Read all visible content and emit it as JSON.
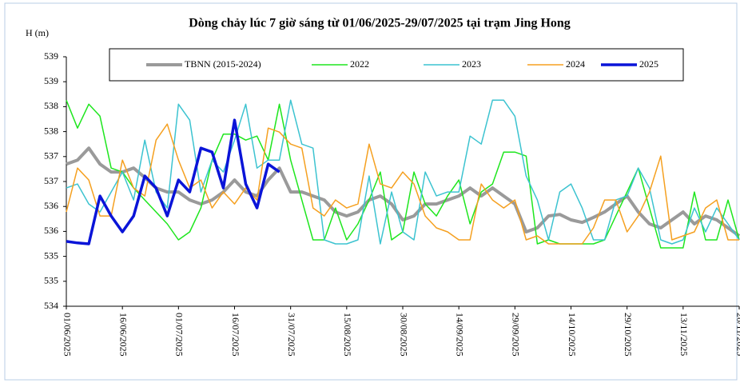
{
  "chart_data": {
    "type": "line",
    "title": "Dòng chảy lúc 7 giờ sáng từ 01/06/2025-29/07/2025 tại trạm Jing Hong",
    "y_label": "H (m)",
    "x": [
      "01/06/2025",
      null,
      null,
      null,
      null,
      "16/06/2025",
      null,
      null,
      null,
      null,
      "01/07/2025",
      null,
      null,
      null,
      null,
      "16/07/2025",
      null,
      null,
      null,
      null,
      "31/07/2025",
      null,
      null,
      null,
      null,
      "15/08/2025",
      null,
      null,
      null,
      null,
      "30/08/2025",
      null,
      null,
      null,
      null,
      "14/09/2025",
      null,
      null,
      null,
      null,
      "29/09/2025",
      null,
      null,
      null,
      null,
      "14/10/2025",
      null,
      null,
      null,
      null,
      "29/10/2025",
      null,
      null,
      null,
      null,
      "13/11/2025",
      null,
      null,
      null,
      null,
      "28/11/2025"
    ],
    "ylim": [
      534,
      539
    ],
    "yticks": [
      534,
      {
        "value": 534.5,
        "label": "535"
      },
      535,
      {
        "value": 535.5,
        "label": "536"
      },
      536,
      {
        "value": 536.5,
        "label": "537"
      },
      537,
      {
        "value": 537.5,
        "label": "538"
      },
      538,
      {
        "value": 538.5,
        "label": "539"
      },
      539
    ],
    "grid": false,
    "legend": "top",
    "series": [
      {
        "name": "TBNN (2015-2024)",
        "color": "#9a9a9a",
        "width": 4,
        "values": [
          536.85,
          536.93,
          537.17,
          536.85,
          536.69,
          536.69,
          536.77,
          536.58,
          536.37,
          536.29,
          536.29,
          536.13,
          536.05,
          536.13,
          536.29,
          536.53,
          536.29,
          536.21,
          536.53,
          536.77,
          536.29,
          536.29,
          536.21,
          536.13,
          535.89,
          535.81,
          535.89,
          536.13,
          536.21,
          536.05,
          535.73,
          535.81,
          536.05,
          536.05,
          536.13,
          536.21,
          536.37,
          536.21,
          536.37,
          536.21,
          536.05,
          535.49,
          535.57,
          535.81,
          535.84,
          535.73,
          535.68,
          535.78,
          535.89,
          536.05,
          536.21,
          535.89,
          535.65,
          535.57,
          535.73,
          535.89,
          535.65,
          535.81,
          535.73,
          535.57,
          535.41
        ]
      },
      {
        "name": "2022",
        "color": "#1ee61e",
        "width": 1.5,
        "values": [
          538.13,
          537.57,
          538.05,
          537.81,
          536.77,
          536.69,
          536.37,
          536.13,
          535.89,
          535.65,
          535.33,
          535.49,
          535.97,
          536.93,
          537.45,
          537.45,
          537.33,
          537.41,
          536.93,
          538.05,
          536.93,
          536.13,
          535.33,
          535.33,
          535.97,
          535.33,
          535.65,
          536.13,
          536.69,
          535.33,
          535.49,
          536.69,
          536.05,
          535.81,
          536.21,
          536.53,
          535.65,
          536.29,
          536.45,
          537.09,
          537.09,
          537.01,
          535.25,
          535.33,
          535.25,
          535.25,
          535.25,
          535.25,
          535.33,
          535.81,
          536.29,
          536.77,
          535.97,
          535.17,
          535.17,
          535.17,
          536.29,
          535.33,
          535.33,
          536.13,
          535.33
        ]
      },
      {
        "name": "2023",
        "color": "#3cc3d0",
        "width": 1.5,
        "values": [
          536.37,
          536.45,
          536.05,
          535.89,
          536.29,
          536.69,
          536.13,
          537.33,
          536.29,
          535.97,
          538.05,
          537.73,
          536.29,
          536.93,
          536.69,
          537.33,
          538.05,
          536.77,
          536.93,
          536.93,
          538.13,
          537.25,
          537.17,
          535.33,
          535.25,
          535.25,
          535.33,
          536.61,
          535.25,
          536.29,
          535.49,
          535.33,
          536.69,
          536.21,
          536.29,
          536.29,
          537.41,
          537.25,
          538.13,
          538.13,
          537.81,
          536.61,
          536.13,
          535.33,
          536.29,
          536.45,
          535.97,
          535.33,
          535.33,
          536.13,
          536.21,
          536.77,
          536.37,
          535.33,
          535.25,
          535.33,
          535.97,
          535.49,
          535.97,
          535.65,
          535.33
        ]
      },
      {
        "name": "2024",
        "color": "#f5a020",
        "width": 1.5,
        "values": [
          535.89,
          536.77,
          536.53,
          535.81,
          535.81,
          536.93,
          536.37,
          536.21,
          537.33,
          537.65,
          536.93,
          536.37,
          536.53,
          535.97,
          536.29,
          536.05,
          536.37,
          536.13,
          537.57,
          537.49,
          537.25,
          537.17,
          535.97,
          535.81,
          536.13,
          535.97,
          536.05,
          537.25,
          536.45,
          536.37,
          536.69,
          536.45,
          535.81,
          535.57,
          535.49,
          535.33,
          535.33,
          536.45,
          536.13,
          535.97,
          536.13,
          535.33,
          535.41,
          535.25,
          535.25,
          535.25,
          535.25,
          535.57,
          536.13,
          536.13,
          535.49,
          535.81,
          536.29,
          537.01,
          535.33,
          535.41,
          535.49,
          535.97,
          536.13,
          535.33,
          535.33
        ]
      },
      {
        "name": "2025",
        "color": "#0a14d8",
        "width": 3.5,
        "values": [
          535.3,
          535.27,
          535.25,
          536.21,
          535.81,
          535.49,
          535.81,
          536.61,
          536.37,
          535.81,
          536.53,
          536.29,
          537.17,
          537.09,
          536.37,
          537.73,
          536.45,
          535.97,
          536.85,
          536.69,
          null,
          null,
          null,
          null,
          null,
          null,
          null,
          null,
          null,
          null,
          null,
          null,
          null,
          null,
          null,
          null,
          null,
          null,
          null,
          null,
          null,
          null,
          null,
          null,
          null,
          null,
          null,
          null,
          null,
          null,
          null,
          null,
          null,
          null,
          null,
          null,
          null,
          null,
          null,
          null,
          null
        ]
      }
    ]
  }
}
